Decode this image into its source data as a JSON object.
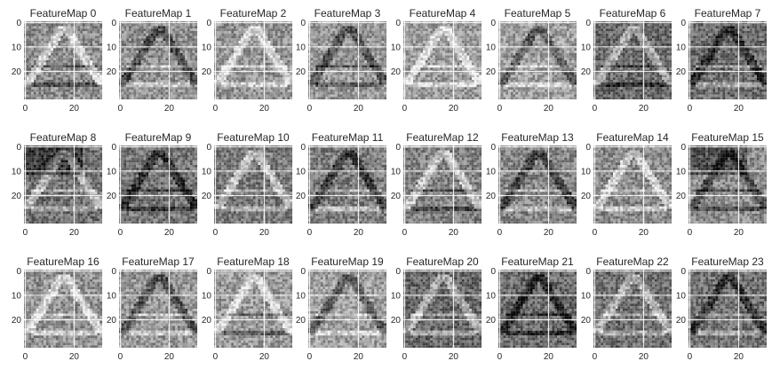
{
  "chart_data": {
    "type": "heatmap",
    "colormap": "gray",
    "grid": true,
    "grid_color": "#ffffff",
    "image_size": [
      32,
      32
    ],
    "layout": {
      "rows": 3,
      "cols": 8
    },
    "xticks": [
      0,
      20
    ],
    "yticks": [
      0,
      10,
      20
    ],
    "panels": [
      {
        "title": "FeatureMap 0"
      },
      {
        "title": "FeatureMap 1"
      },
      {
        "title": "FeatureMap 2"
      },
      {
        "title": "FeatureMap 3"
      },
      {
        "title": "FeatureMap 4"
      },
      {
        "title": "FeatureMap 5"
      },
      {
        "title": "FeatureMap 6"
      },
      {
        "title": "FeatureMap 7"
      },
      {
        "title": "FeatureMap 8"
      },
      {
        "title": "FeatureMap 9"
      },
      {
        "title": "FeatureMap 10"
      },
      {
        "title": "FeatureMap 11"
      },
      {
        "title": "FeatureMap 12"
      },
      {
        "title": "FeatureMap 13"
      },
      {
        "title": "FeatureMap 14"
      },
      {
        "title": "FeatureMap 15"
      },
      {
        "title": "FeatureMap 16"
      },
      {
        "title": "FeatureMap 17"
      },
      {
        "title": "FeatureMap 18"
      },
      {
        "title": "FeatureMap 19"
      },
      {
        "title": "FeatureMap 20"
      },
      {
        "title": "FeatureMap 21"
      },
      {
        "title": "FeatureMap 22"
      },
      {
        "title": "FeatureMap 23"
      }
    ]
  }
}
